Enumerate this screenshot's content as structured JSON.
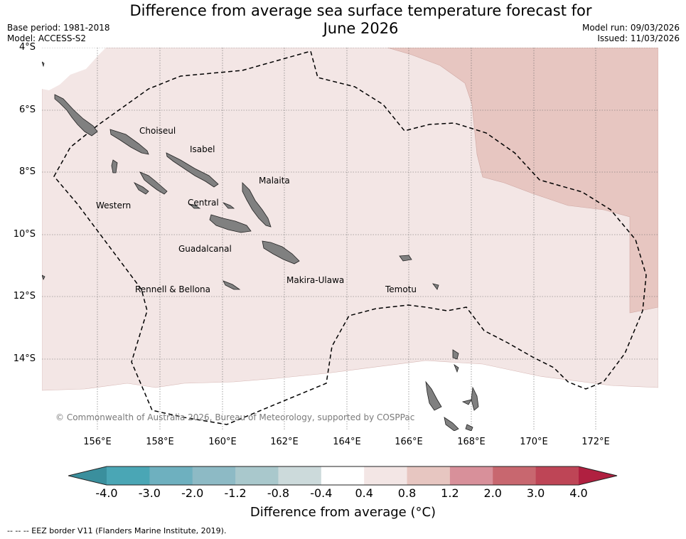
{
  "title_line1": "Difference from average sea surface temperature forecast for",
  "title_line2": "June 2026",
  "meta_left": {
    "base_period": "Base period: 1981-2018",
    "model": "Model: ACCESS-S2"
  },
  "meta_right": {
    "model_run": "Model run: 09/03/2026",
    "issued": "Issued: 11/03/2026"
  },
  "lat_labels": [
    "4°S",
    "6°S",
    "8°S",
    "10°S",
    "12°S",
    "14°S"
  ],
  "lon_labels": [
    "156°E",
    "158°E",
    "160°E",
    "162°E",
    "164°E",
    "166°E",
    "168°E",
    "170°E",
    "172°E"
  ],
  "regions": {
    "choiseul": "Choiseul",
    "isabel": "Isabel",
    "malaita": "Malaita",
    "western": "Western",
    "central": "Central",
    "guadalcanal": "Guadalcanal",
    "makira": "Makira-Ulawa",
    "temotu": "Temotu",
    "rennell": "Rennell & Bellona"
  },
  "copyright": "© Commonwealth of Australia 2026, Bureau of Meteorology, supported by COSPPac",
  "colorbar": {
    "tick_labels": [
      "-4.0",
      "-3.0",
      "-2.0",
      "-1.2",
      "-0.8",
      "-0.4",
      "0.4",
      "0.8",
      "1.2",
      "2.0",
      "3.0",
      "4.0"
    ],
    "colors": [
      "#3a8f9d",
      "#4aa6b5",
      "#6eb0bf",
      "#8dbac5",
      "#a9c8cc",
      "#ccdadb",
      "#ffffff",
      "#f3e6e5",
      "#e7c6c1",
      "#d8909a",
      "#c8676f",
      "#be4556",
      "#b02040"
    ],
    "title": "Difference from average (°C)"
  },
  "footer": "--  --  -- EEZ border V11 (Flanders Marine Institute, 2019).",
  "map_colors": {
    "light_anomaly": "#f3e6e5",
    "moderate_anomaly": "#e7c6c1",
    "land": "#808080",
    "ocean_blank": "#ffffff"
  }
}
